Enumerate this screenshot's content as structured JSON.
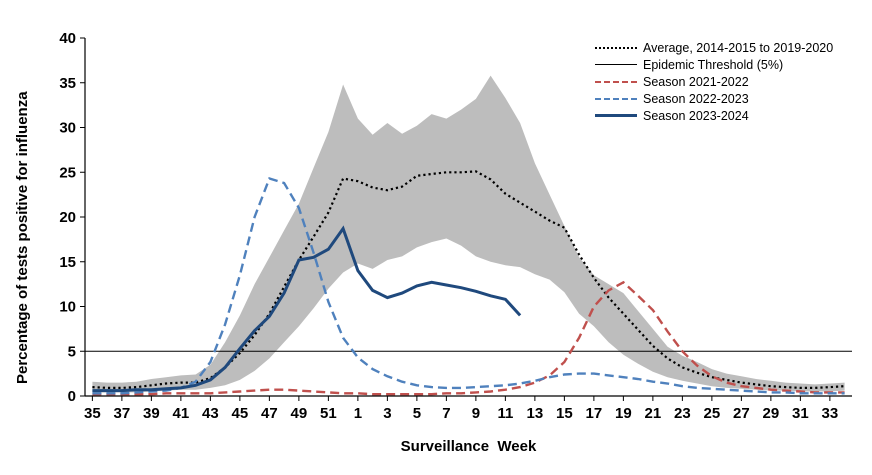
{
  "chart_data": {
    "type": "line",
    "title": "",
    "xlabel": "Surveillance  Week",
    "ylabel": "Percentage of tests positive for influenza",
    "ylim": [
      0,
      40
    ],
    "y_ticks": [
      0,
      5,
      10,
      15,
      20,
      25,
      30,
      35,
      40
    ],
    "x_tick_every": 2,
    "x_tick_labels": [
      "35",
      "37",
      "39",
      "41",
      "43",
      "45",
      "47",
      "49",
      "51",
      "1",
      "3",
      "5",
      "7",
      "9",
      "11",
      "13",
      "15",
      "17",
      "19",
      "21",
      "23",
      "25",
      "27",
      "29",
      "31",
      "33"
    ],
    "weeks": [
      35,
      36,
      37,
      38,
      39,
      40,
      41,
      42,
      43,
      44,
      45,
      46,
      47,
      48,
      49,
      50,
      51,
      52,
      1,
      2,
      3,
      4,
      5,
      6,
      7,
      8,
      9,
      10,
      11,
      12,
      13,
      14,
      15,
      16,
      17,
      18,
      19,
      20,
      21,
      22,
      23,
      24,
      25,
      26,
      27,
      28,
      29,
      30,
      31,
      32,
      33,
      34
    ],
    "threshold": {
      "label": "Epidemic Threshold (5%)",
      "value": 5,
      "color": "#000000"
    },
    "band": {
      "color": "#BDBDBD",
      "upper": [
        1.6,
        1.5,
        1.5,
        1.6,
        1.9,
        2.1,
        2.3,
        2.4,
        3.5,
        6.0,
        9.0,
        12.5,
        15.5,
        18.5,
        21.5,
        25.5,
        29.5,
        34.8,
        31.0,
        29.2,
        30.5,
        29.3,
        30.2,
        31.5,
        31.0,
        32.0,
        33.2,
        35.8,
        33.3,
        30.5,
        26.0,
        22.5,
        19.0,
        15.5,
        13.5,
        12.5,
        11.5,
        9.5,
        7.5,
        5.5,
        4.5,
        3.8,
        3.0,
        2.5,
        2.2,
        1.9,
        1.7,
        1.5,
        1.4,
        1.3,
        1.4,
        1.5
      ],
      "lower": [
        0.4,
        0.4,
        0.4,
        0.4,
        0.5,
        0.6,
        0.7,
        0.7,
        0.9,
        1.2,
        1.8,
        2.8,
        4.2,
        6.0,
        7.8,
        9.8,
        12.0,
        13.8,
        14.8,
        14.2,
        15.2,
        15.6,
        16.6,
        17.2,
        17.6,
        16.8,
        15.6,
        15.0,
        14.6,
        14.4,
        13.6,
        13.0,
        11.6,
        9.2,
        7.8,
        6.0,
        4.6,
        3.6,
        2.7,
        2.1,
        1.7,
        1.4,
        1.1,
        0.9,
        0.8,
        0.7,
        0.6,
        0.6,
        0.5,
        0.5,
        0.5,
        0.6
      ]
    },
    "series": [
      {
        "name": "Average, 2014-2015 to 2019-2020",
        "style": "dotted",
        "color": "#000000",
        "width": 2.2,
        "values": [
          1.0,
          0.9,
          0.9,
          1.0,
          1.2,
          1.4,
          1.5,
          1.5,
          2.0,
          3.2,
          4.8,
          6.8,
          9.2,
          12.2,
          15.2,
          17.8,
          20.5,
          24.3,
          24.0,
          23.3,
          23.0,
          23.4,
          24.6,
          24.8,
          25.0,
          25.0,
          25.1,
          24.2,
          22.6,
          21.6,
          20.6,
          19.6,
          18.8,
          15.8,
          13.2,
          11.0,
          9.2,
          7.4,
          5.6,
          4.2,
          3.2,
          2.6,
          2.1,
          1.8,
          1.5,
          1.3,
          1.1,
          1.0,
          0.9,
          0.9,
          1.0,
          1.1
        ]
      },
      {
        "name": "Season 2021-2022",
        "style": "dashed",
        "color": "#C0504D",
        "width": 2.4,
        "values": [
          0.2,
          0.2,
          0.2,
          0.2,
          0.2,
          0.3,
          0.3,
          0.3,
          0.3,
          0.4,
          0.5,
          0.6,
          0.7,
          0.7,
          0.6,
          0.5,
          0.4,
          0.3,
          0.3,
          0.2,
          0.2,
          0.2,
          0.2,
          0.2,
          0.3,
          0.3,
          0.4,
          0.5,
          0.7,
          1.0,
          1.5,
          2.3,
          3.8,
          6.5,
          10.0,
          11.8,
          12.7,
          11.2,
          9.6,
          7.2,
          5.0,
          3.4,
          2.2,
          1.5,
          1.1,
          0.9,
          0.7,
          0.6,
          0.5,
          0.4,
          0.4,
          0.4
        ]
      },
      {
        "name": "Season 2022-2023",
        "style": "dashed",
        "color": "#4F81BD",
        "width": 2.4,
        "values": [
          0.3,
          0.3,
          0.3,
          0.4,
          0.5,
          0.6,
          0.9,
          1.6,
          3.8,
          8.0,
          13.5,
          20.0,
          24.3,
          23.8,
          21.0,
          16.0,
          10.5,
          6.5,
          4.3,
          3.0,
          2.2,
          1.6,
          1.2,
          1.0,
          0.9,
          0.9,
          1.0,
          1.1,
          1.2,
          1.4,
          1.7,
          2.1,
          2.4,
          2.5,
          2.5,
          2.3,
          2.1,
          1.9,
          1.6,
          1.4,
          1.1,
          0.9,
          0.8,
          0.7,
          0.6,
          0.5,
          0.4,
          0.4,
          0.3,
          0.3,
          0.3,
          0.3
        ]
      },
      {
        "name": "Season 2023-2024",
        "style": "solid",
        "color": "#1F497D",
        "width": 3,
        "values": [
          0.6,
          0.6,
          0.6,
          0.7,
          0.7,
          0.8,
          0.9,
          1.2,
          1.8,
          3.2,
          5.3,
          7.3,
          8.9,
          11.5,
          15.2,
          15.5,
          16.4,
          18.7,
          14.0,
          11.8,
          11.0,
          11.5,
          12.3,
          12.7,
          12.4,
          12.1,
          11.7,
          11.2,
          10.8,
          9.0,
          null,
          null,
          null,
          null,
          null,
          null,
          null,
          null,
          null,
          null,
          null,
          null,
          null,
          null,
          null,
          null,
          null,
          null,
          null,
          null,
          null,
          null
        ]
      }
    ],
    "legend": [
      {
        "label": "Average, 2014-2015 to 2019-2020",
        "style": "dotted",
        "color": "#000000"
      },
      {
        "label": "Epidemic Threshold (5%)",
        "style": "thin",
        "color": "#000000"
      },
      {
        "label": "Season 2021-2022",
        "style": "dashed",
        "color": "#C0504D"
      },
      {
        "label": "Season 2022-2023",
        "style": "dashed",
        "color": "#4F81BD"
      },
      {
        "label": "Season 2023-2024",
        "style": "solid",
        "color": "#1F497D"
      }
    ]
  }
}
